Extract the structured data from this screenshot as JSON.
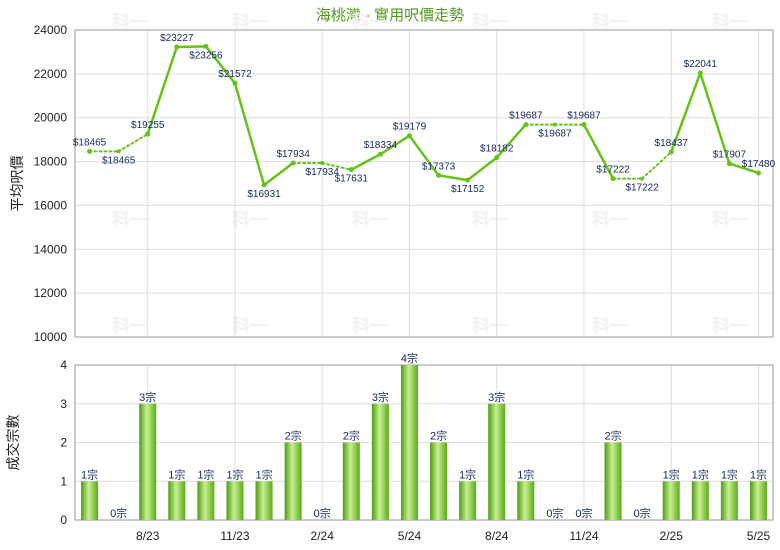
{
  "title": "海桃灣 - 實用呎價走勢",
  "watermark": "科一",
  "colors": {
    "line": "#66c21a",
    "bar_light": "#c9ef93",
    "bar_dark": "#4e9c10",
    "label": "#1a2b66",
    "title": "#4f9a1a"
  },
  "chart_data": [
    {
      "type": "line",
      "title": "海桃灣 - 實用呎價走勢",
      "ylabel": "平均呎價",
      "ylim": [
        10000,
        24000
      ],
      "yticks": [
        10000,
        12000,
        14000,
        16000,
        18000,
        20000,
        22000,
        24000
      ],
      "x": [
        "2023-06",
        "2023-07",
        "2023-08",
        "2023-09",
        "2023-10",
        "2023-11",
        "2023-12",
        "2024-01",
        "2024-02",
        "2024-03",
        "2024-04",
        "2024-05",
        "2024-06",
        "2024-07",
        "2024-08",
        "2024-09",
        "2024-10",
        "2024-11",
        "2024-12",
        "2025-01",
        "2025-02",
        "2025-03",
        "2025-04",
        "2025-05"
      ],
      "values": [
        18465,
        18465,
        19255,
        23227,
        23256,
        21572,
        16931,
        17934,
        17934,
        17631,
        18334,
        19179,
        17373,
        17152,
        18182,
        19687,
        19687,
        19687,
        17222,
        17222,
        18437,
        22041,
        17907,
        17480
      ],
      "point_labels": [
        "$18465",
        "$18465",
        "$19255",
        "$23227",
        "$23256",
        "$21572",
        "$16931",
        "$17934",
        "$17934",
        "$17631",
        "$18334",
        "$19179",
        "$17373",
        "$17152",
        "$18182",
        "$19687",
        "$19687",
        "$19687",
        "$17222",
        "$17222",
        "$18437",
        "$22041",
        "$17907",
        "$17480"
      ],
      "actual": [
        true,
        false,
        true,
        true,
        true,
        true,
        true,
        true,
        false,
        true,
        true,
        true,
        true,
        true,
        true,
        true,
        false,
        true,
        true,
        false,
        true,
        true,
        true,
        true
      ],
      "grid": true
    },
    {
      "type": "bar",
      "ylabel": "成交宗數",
      "ylim": [
        0,
        4
      ],
      "yticks": [
        0,
        1,
        2,
        3,
        4
      ],
      "categories": [
        "2023-06",
        "2023-07",
        "2023-08",
        "2023-09",
        "2023-10",
        "2023-11",
        "2023-12",
        "2024-01",
        "2024-02",
        "2024-03",
        "2024-04",
        "2024-05",
        "2024-06",
        "2024-07",
        "2024-08",
        "2024-09",
        "2024-10",
        "2024-11",
        "2024-12",
        "2025-01",
        "2025-02",
        "2025-03",
        "2025-04",
        "2025-05"
      ],
      "values": [
        1,
        0,
        3,
        1,
        1,
        1,
        1,
        2,
        0,
        2,
        3,
        4,
        2,
        1,
        3,
        1,
        0,
        0,
        2,
        0,
        1,
        1,
        1,
        1
      ],
      "bar_labels": [
        "1宗",
        "0宗",
        "3宗",
        "1宗",
        "1宗",
        "1宗",
        "1宗",
        "2宗",
        "0宗",
        "2宗",
        "3宗",
        "4宗",
        "2宗",
        "1宗",
        "3宗",
        "1宗",
        "0宗",
        "0宗",
        "2宗",
        "0宗",
        "1宗",
        "1宗",
        "1宗",
        "1宗"
      ],
      "x_tick_labels": [
        "8/23",
        "11/23",
        "2/24",
        "5/24",
        "8/24",
        "11/24",
        "2/25",
        "5/25"
      ],
      "x_tick_categories": [
        "2023-08",
        "2023-11",
        "2024-02",
        "2024-05",
        "2024-08",
        "2024-11",
        "2025-02",
        "2025-05"
      ],
      "grid": true
    }
  ]
}
